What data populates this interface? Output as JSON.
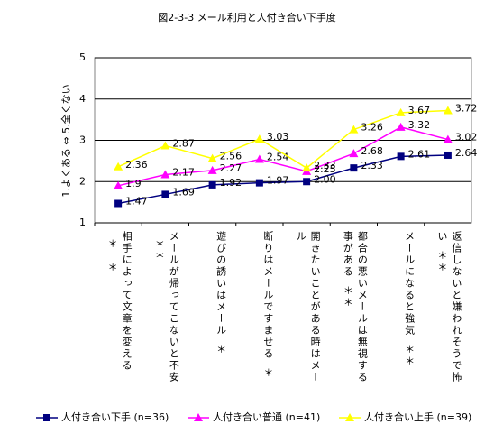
{
  "chart_data": {
    "type": "line",
    "title": "図2-3-3 メール利用と人付き合い下手度",
    "y_label": "1.よくある ⇔ 5.全くない",
    "categories": [
      "相手によって文章を変える",
      "メールが帰ってこないと不安",
      "遊びの誘いはメール",
      "断りはメールですませる",
      "開きたいことがある時はメール",
      "都合の悪いメールは無視する事がある",
      "メールになると強気",
      "返信しないと嫌われそうで怖い"
    ],
    "significance": [
      "＊　＊",
      "＊＊",
      "＊",
      "＊",
      "",
      "＊＊",
      "＊＊",
      "＊＊"
    ],
    "ylim": [
      1,
      5
    ],
    "yticks": [
      1,
      2,
      3,
      4,
      5
    ],
    "grid": true,
    "series": [
      {
        "name": "人付き合い下手 (n=36)",
        "color": "#000080",
        "marker": "square",
        "values": [
          1.47,
          1.69,
          1.92,
          1.97,
          2.0,
          2.33,
          2.61,
          2.64
        ],
        "value_labels": [
          "1.47",
          "1.69",
          "1.92",
          "1.97",
          "2.00",
          "2.33",
          "2.61",
          "2.64"
        ]
      },
      {
        "name": "人付き合い普通 (n=41)",
        "color": "#ff00ff",
        "marker": "triangle",
        "values": [
          1.9,
          2.17,
          2.27,
          2.54,
          2.25,
          2.68,
          3.32,
          3.02
        ]
      },
      {
        "name": "人付き合い上手 (n=39)",
        "color": "#ffff00",
        "marker": "triangle",
        "values": [
          2.36,
          2.87,
          2.56,
          3.03,
          2.33,
          3.26,
          3.67,
          3.72
        ]
      }
    ]
  }
}
